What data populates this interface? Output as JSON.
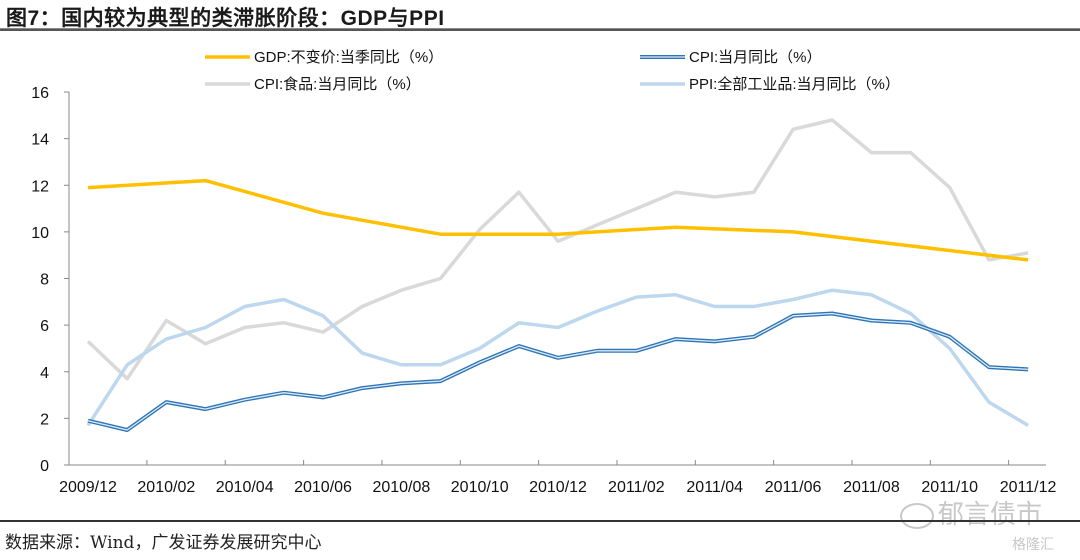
{
  "header": {
    "title": "图7：国内较为典型的类滞胀阶段：GDP与PPI"
  },
  "footer": {
    "source": "数据来源：Wind，广发证券发展研究中心"
  },
  "watermark": {
    "text": "郁言债市",
    "sub": "格隆汇"
  },
  "chart_data": {
    "type": "line",
    "title": "国内较为典型的类滞胀阶段：GDP与PPI",
    "xlabel": "",
    "ylabel": "",
    "ylim": [
      0,
      16
    ],
    "yticks": [
      0,
      2,
      4,
      6,
      8,
      10,
      12,
      14,
      16
    ],
    "x": [
      "2009/12",
      "2010/01",
      "2010/02",
      "2010/03",
      "2010/04",
      "2010/05",
      "2010/06",
      "2010/07",
      "2010/08",
      "2010/09",
      "2010/10",
      "2010/11",
      "2010/12",
      "2011/01",
      "2011/02",
      "2011/03",
      "2011/04",
      "2011/05",
      "2011/06",
      "2011/07",
      "2011/08",
      "2011/09",
      "2011/10",
      "2011/11",
      "2011/12"
    ],
    "xtick_labels": [
      "2009/12",
      "2010/02",
      "2010/04",
      "2010/06",
      "2010/08",
      "2010/10",
      "2010/12",
      "2011/02",
      "2011/04",
      "2011/06",
      "2011/08",
      "2011/10",
      "2011/12"
    ],
    "grid": false,
    "legend": "top",
    "series": [
      {
        "name": "GDP:不变价:当季同比（%）",
        "color": "#FFC000",
        "values": [
          11.9,
          null,
          null,
          12.2,
          null,
          null,
          10.8,
          null,
          null,
          9.9,
          null,
          null,
          9.9,
          null,
          null,
          10.2,
          null,
          null,
          10.0,
          null,
          null,
          9.4,
          null,
          null,
          8.8
        ]
      },
      {
        "name": "CPI:当月同比（%）",
        "color": "#2E75B6",
        "values": [
          1.9,
          1.5,
          2.7,
          2.4,
          2.8,
          3.1,
          2.9,
          3.3,
          3.5,
          3.6,
          4.4,
          5.1,
          4.6,
          4.9,
          4.9,
          5.4,
          5.3,
          5.5,
          6.4,
          6.5,
          6.2,
          6.1,
          5.5,
          4.2,
          4.1
        ]
      },
      {
        "name": "CPI:食品:当月同比（%）",
        "color": "#D9D9D9",
        "values": [
          5.3,
          3.7,
          6.2,
          5.2,
          5.9,
          6.1,
          5.7,
          6.8,
          7.5,
          8.0,
          10.1,
          11.7,
          9.6,
          10.3,
          11.0,
          11.7,
          11.5,
          11.7,
          14.4,
          14.8,
          13.4,
          13.4,
          11.9,
          8.8,
          9.1
        ]
      },
      {
        "name": "PPI:全部工业品:当月同比（%）",
        "color": "#BDD7EE",
        "values": [
          1.7,
          4.3,
          5.4,
          5.9,
          6.8,
          7.1,
          6.4,
          4.8,
          4.3,
          4.3,
          5.0,
          6.1,
          5.9,
          6.6,
          7.2,
          7.3,
          6.8,
          6.8,
          7.1,
          7.5,
          7.3,
          6.5,
          5.0,
          2.7,
          1.7
        ]
      }
    ]
  }
}
